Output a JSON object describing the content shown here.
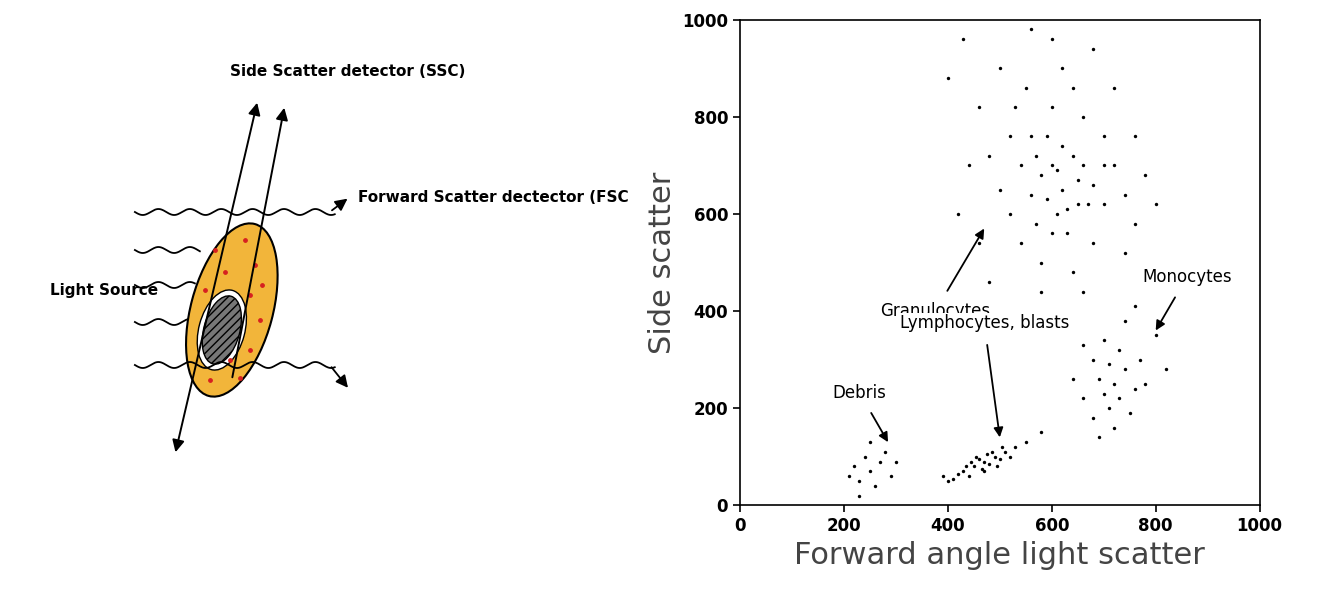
{
  "diagram": {
    "labels": {
      "side_scatter": "Side Scatter detector (SSC)",
      "forward_scatter": "Forward Scatter dectector (FSC",
      "light_source": "Light Source"
    }
  },
  "chart_data": {
    "type": "scatter",
    "x_label": "Forward angle light scatter",
    "y_label": "Side scatter",
    "x": [
      620,
      600,
      650,
      580,
      640,
      560,
      680,
      610,
      590,
      660,
      540,
      700,
      630,
      570,
      520,
      720,
      600,
      660,
      500,
      740,
      550,
      620,
      480,
      680,
      760,
      460,
      580,
      640,
      700,
      520,
      440,
      780,
      600,
      500,
      560,
      720,
      420,
      680,
      540,
      760,
      460,
      620,
      590,
      650,
      610,
      630,
      570,
      670,
      600,
      560,
      700,
      530,
      640,
      740,
      480,
      400,
      800,
      660,
      580,
      430,
      720,
      700,
      740,
      680,
      760,
      710,
      730,
      690,
      770,
      660,
      750,
      700,
      780,
      720,
      640,
      800,
      680,
      740,
      820,
      660,
      710,
      730,
      760,
      690,
      470,
      450,
      490,
      430,
      510,
      460,
      480,
      440,
      500,
      420,
      530,
      470,
      455,
      485,
      410,
      520,
      495,
      445,
      550,
      400,
      475,
      465,
      505,
      435,
      580,
      390,
      250,
      230,
      270,
      220,
      260,
      280,
      240,
      210,
      290,
      250,
      230,
      300
    ],
    "values": [
      650,
      700,
      620,
      680,
      720,
      640,
      660,
      600,
      760,
      700,
      700,
      620,
      560,
      580,
      760,
      700,
      820,
      800,
      650,
      640,
      860,
      900,
      720,
      540,
      580,
      820,
      500,
      480,
      760,
      600,
      700,
      680,
      960,
      900,
      980,
      860,
      600,
      940,
      540,
      760,
      540,
      740,
      630,
      670,
      690,
      610,
      720,
      620,
      560,
      760,
      700,
      820,
      860,
      520,
      460,
      880,
      620,
      440,
      440,
      960,
      250,
      230,
      280,
      300,
      240,
      200,
      320,
      260,
      300,
      220,
      190,
      340,
      250,
      160,
      260,
      350,
      180,
      380,
      280,
      330,
      290,
      220,
      410,
      140,
      90,
      80,
      100,
      70,
      110,
      95,
      85,
      60,
      95,
      65,
      120,
      70,
      100,
      110,
      55,
      100,
      80,
      90,
      130,
      50,
      105,
      75,
      120,
      80,
      150,
      60,
      70,
      50,
      90,
      80,
      40,
      110,
      100,
      60,
      60,
      130,
      20,
      90
    ],
    "color": "#000000",
    "marker": "o",
    "xlim": [
      0,
      1000
    ],
    "xticks": [
      0,
      200,
      400,
      600,
      800,
      1000
    ],
    "ylim": [
      0,
      1000
    ],
    "yticks": [
      0,
      200,
      400,
      600,
      800,
      1000
    ],
    "grid": false,
    "annotations": [
      {
        "text": "Granulocytes"
      },
      {
        "text": "Lymphocytes, blasts"
      },
      {
        "text": "Debris"
      },
      {
        "text": "Monocytes"
      }
    ]
  }
}
